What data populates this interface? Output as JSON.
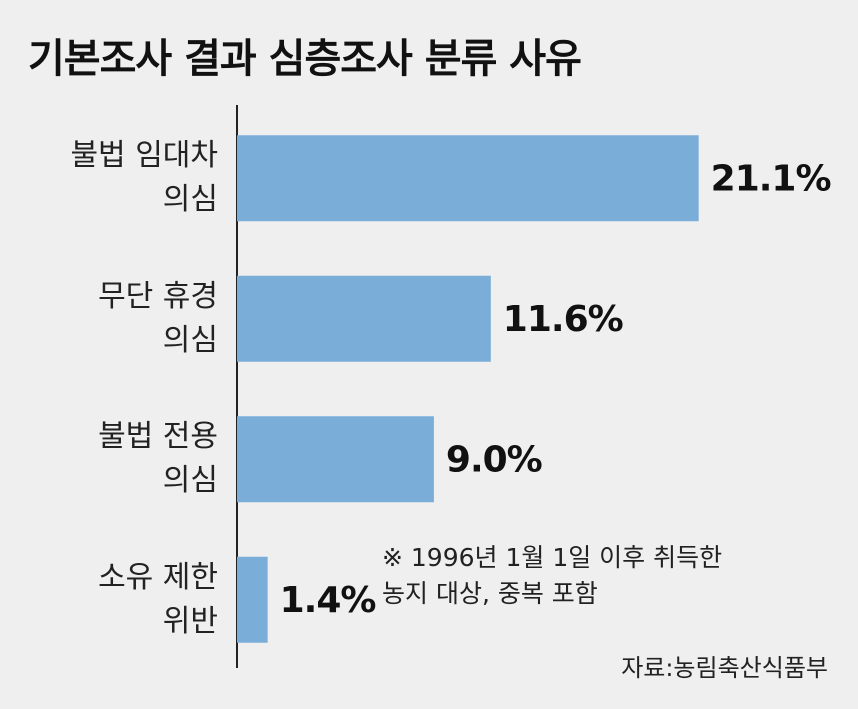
{
  "chart_data": {
    "type": "bar",
    "orientation": "horizontal",
    "title": "기본조사 결과 심층조사 분류 사유",
    "categories": [
      "불법 임대차\n의심",
      "무단 휴경\n의심",
      "불법 전용\n의심",
      "소유 제한\n위반"
    ],
    "values": [
      21.1,
      11.6,
      9.0,
      1.4
    ],
    "value_labels": [
      "21.1%",
      "11.6%",
      "9.0%",
      "1.4%"
    ],
    "color": "#7aaed8",
    "xlim": [
      0,
      25
    ],
    "annotation": "※ 1996년 1월 1일 이후 취득한\n농지 대상, 중복 포함",
    "source": "자료:농림축산식품부"
  }
}
